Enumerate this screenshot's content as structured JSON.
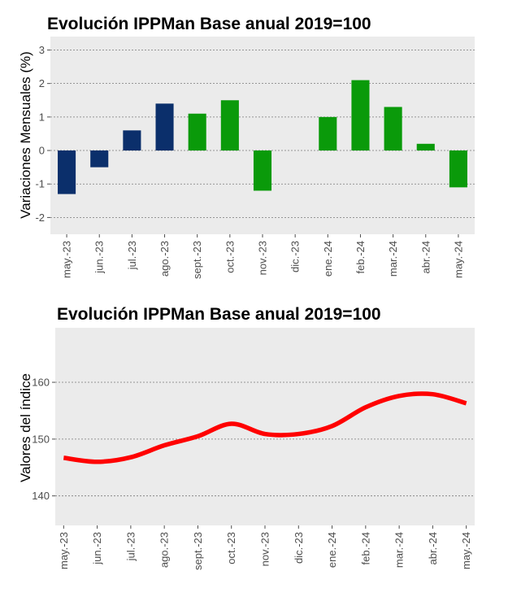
{
  "chart_data": [
    {
      "type": "bar",
      "title": "Evolución IPPMan Base anual 2019=100",
      "xlabel": "",
      "ylabel": "Variaciones Mensuales (%)",
      "categories": [
        "may.-23",
        "jun.-23",
        "jul.-23",
        "ago.-23",
        "sept.-23",
        "oct.-23",
        "nov.-23",
        "dic.-23",
        "ene.-24",
        "feb.-24",
        "mar.-24",
        "abr.-24",
        "may.-24"
      ],
      "values": [
        -1.3,
        -0.5,
        0.6,
        1.4,
        1.1,
        1.5,
        -1.2,
        0.0,
        1.0,
        2.1,
        1.3,
        0.2,
        -1.1
      ],
      "bar_colors": [
        "#0b2f6b",
        "#0b2f6b",
        "#0b2f6b",
        "#0b2f6b",
        "#0a9a0a",
        "#0a9a0a",
        "#0a9a0a",
        "#0a9a0a",
        "#0a9a0a",
        "#0a9a0a",
        "#0a9a0a",
        "#0a9a0a",
        "#0a9a0a"
      ],
      "yticks": [
        3,
        2,
        1,
        0,
        -1,
        -2
      ],
      "ylim": [
        -2.5,
        3.4
      ],
      "grid": true
    },
    {
      "type": "line",
      "title": "Evolución IPPMan Base anual 2019=100",
      "xlabel": "",
      "ylabel": "Valores del índice",
      "categories": [
        "may.-23",
        "jun.-23",
        "jul.-23",
        "ago.-23",
        "sept.-23",
        "oct.-23",
        "nov.-23",
        "dic.-23",
        "ene.-24",
        "feb.-24",
        "mar.-24",
        "abr.-24",
        "may.-24"
      ],
      "values": [
        146.7,
        146.0,
        146.8,
        148.9,
        150.5,
        152.7,
        150.9,
        150.9,
        152.3,
        155.6,
        157.6,
        157.9,
        156.3
      ],
      "line_color": "#ff0000",
      "yticks": [
        160,
        150,
        140
      ],
      "ylim": [
        134.8,
        169.6
      ],
      "grid": true
    }
  ]
}
